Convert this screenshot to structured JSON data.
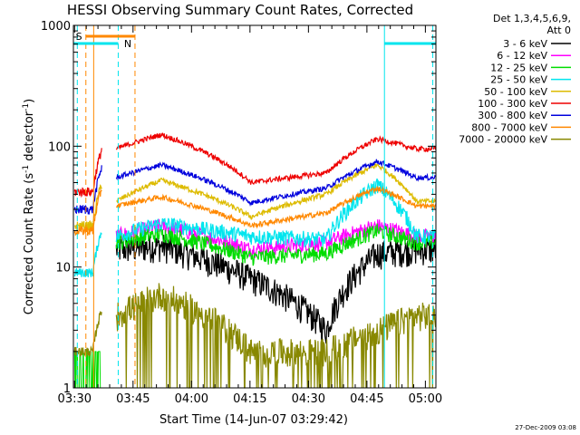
{
  "chart_data": {
    "type": "line",
    "title": "HESSI Observing Summary Count Rates, Corrected",
    "xlabel": "Start Time (14-Jun-07 03:29:42)",
    "ylabel": "Corrected Count Rate (s",
    "ylabel_sup": "-1",
    "ylabel_mid": " detector",
    "ylabel_sup2": "-1",
    "ylabel_end": ")",
    "yscale": "log",
    "ylim": [
      1,
      1000
    ],
    "xlim_minutes": [
      0,
      93
    ],
    "x_ticks": [
      {
        "label": "03:30",
        "m": 0.3
      },
      {
        "label": "03:45",
        "m": 15.3
      },
      {
        "label": "04:00",
        "m": 30.3
      },
      {
        "label": "04:15",
        "m": 45.3
      },
      {
        "label": "04:30",
        "m": 60.3
      },
      {
        "label": "04:45",
        "m": 75.3
      },
      {
        "label": "05:00",
        "m": 90.3
      }
    ],
    "y_ticks": [
      {
        "label": "1",
        "v": 1
      },
      {
        "label": "10",
        "v": 10
      },
      {
        "label": "100",
        "v": 100
      },
      {
        "label": "1000",
        "v": 1000
      }
    ],
    "legend_header": [
      "Det 1,3,4,5,6,9,",
      "Att 0"
    ],
    "legend_placement": "right",
    "series": [
      {
        "name": "3 - 6 keV",
        "color": "#000000",
        "pre": 0,
        "eclipse": [
          14,
          15,
          8,
          3
        ],
        "flare": 13
      },
      {
        "name": "6 - 12 keV",
        "color": "#ff00ff",
        "pre": 0,
        "eclipse": [
          18,
          22,
          14,
          16
        ],
        "flare": 22
      },
      {
        "name": "12 - 25 keV",
        "color": "#00dd00",
        "pre": 0,
        "eclipse": [
          16,
          19,
          12,
          13
        ],
        "flare": 20
      },
      {
        "name": "25 - 50 keV",
        "color": "#00e5ee",
        "pre": 9,
        "eclipse": [
          18,
          23,
          18,
          17
        ],
        "flare": 48
      },
      {
        "name": "50 - 100 keV",
        "color": "#ddbb00",
        "pre": 22,
        "eclipse": [
          35,
          52,
          26,
          40
        ],
        "flare": 70
      },
      {
        "name": "100 - 300 keV",
        "color": "#ee0000",
        "pre": 42,
        "eclipse": [
          95,
          125,
          50,
          60
        ],
        "flare": 115
      },
      {
        "name": "300 - 800 keV",
        "color": "#0000dd",
        "pre": 30,
        "eclipse": [
          55,
          70,
          34,
          45
        ],
        "flare": 75
      },
      {
        "name": "800 - 7000 keV",
        "color": "#ff8800",
        "pre": 20,
        "eclipse": [
          32,
          38,
          22,
          28
        ],
        "flare": 45
      },
      {
        "name": "7000 - 20000 keV",
        "color": "#888800",
        "pre": 2,
        "eclipse": [
          4,
          6,
          2,
          2
        ],
        "flare": 3
      }
    ],
    "flag_labels": [
      {
        "text": "S",
        "color": "#ff8800"
      },
      {
        "text": "N",
        "color": "#00e5ee"
      }
    ],
    "timestamp": "27-Dec-2009 03:08"
  }
}
